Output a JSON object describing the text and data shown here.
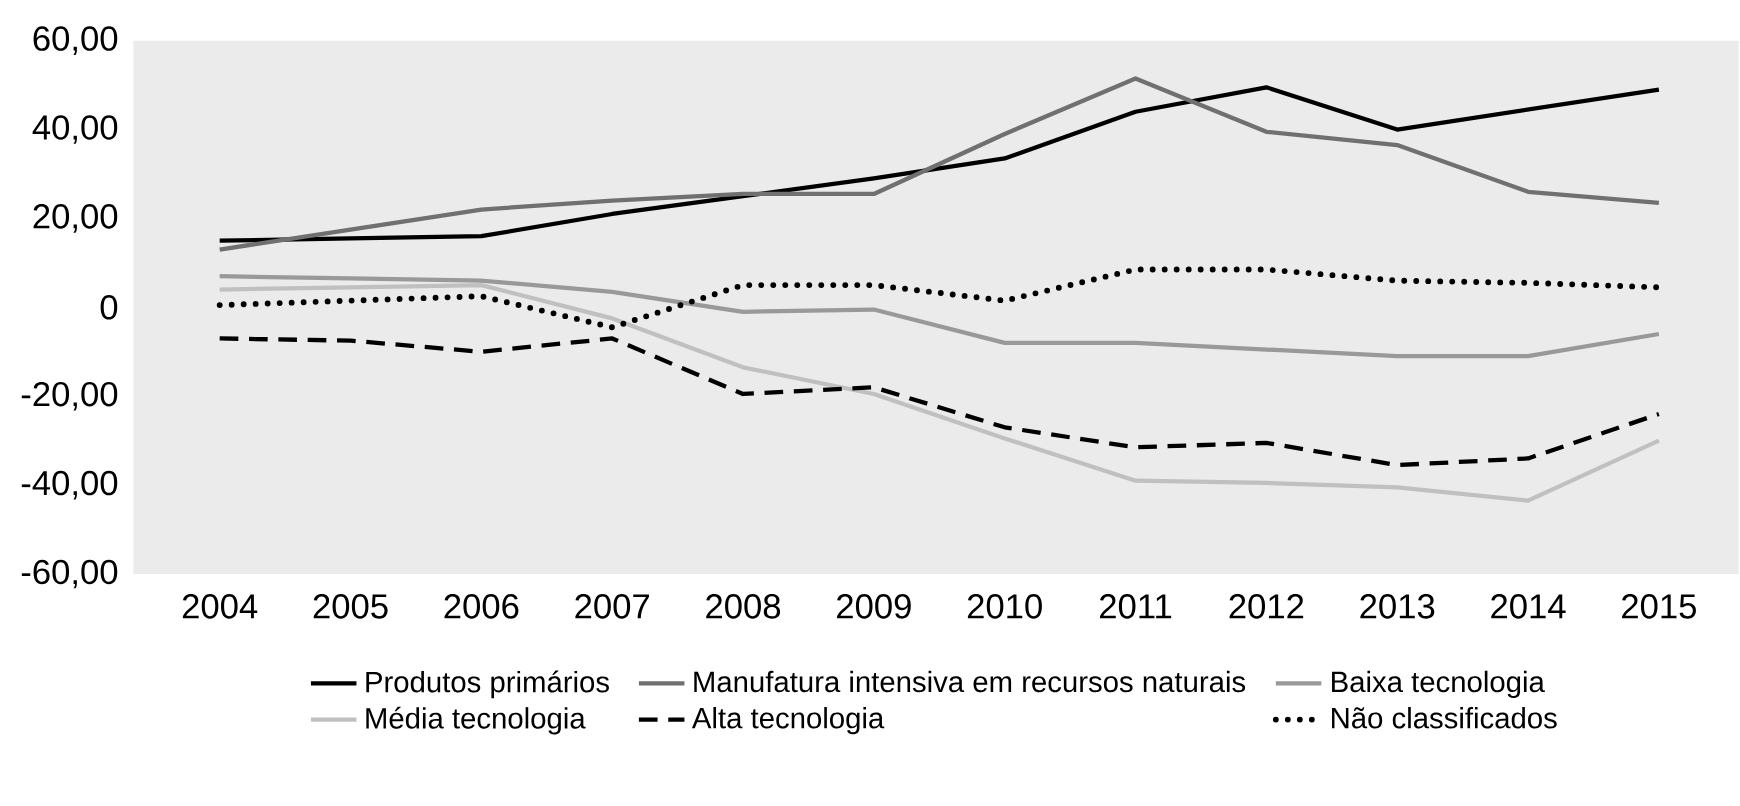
{
  "chart_data": {
    "type": "line",
    "x": [
      2004,
      2005,
      2006,
      2007,
      2008,
      2009,
      2010,
      2011,
      2012,
      2013,
      2014,
      2015
    ],
    "series": [
      {
        "name": "Produtos primários",
        "color": "#000000",
        "line_style": "solid",
        "values": [
          15,
          15.5,
          16,
          21,
          25,
          29,
          33.5,
          44,
          49.5,
          40,
          44.5,
          49
        ]
      },
      {
        "name": "Manufatura intensiva em recursos naturais",
        "color": "#707070",
        "line_style": "solid",
        "values": [
          13,
          17.5,
          22,
          24,
          25.5,
          25.5,
          39,
          51.5,
          39.5,
          36.5,
          26,
          23.5
        ]
      },
      {
        "name": "Baixa tecnologia",
        "color": "#999999",
        "line_style": "solid",
        "values": [
          7,
          6.5,
          6,
          3.5,
          -1,
          -0.5,
          -8,
          -8,
          -9.5,
          -11,
          -11,
          -6
        ]
      },
      {
        "name": "Média tecnologia",
        "color": "#c0c0c0",
        "line_style": "solid",
        "values": [
          4,
          4.5,
          5,
          -2.5,
          -13.5,
          -19.5,
          -29.5,
          -39,
          -39.5,
          -40.5,
          -43.5,
          -30
        ]
      },
      {
        "name": "Alta tecnologia",
        "color": "#000000",
        "line_style": "dashed",
        "values": [
          -7,
          -7.5,
          -10,
          -7,
          -19.5,
          -18,
          -27,
          -31.5,
          -30.5,
          -35.5,
          -34,
          -24
        ]
      },
      {
        "name": "Não classificados",
        "color": "#000000",
        "line_style": "dotted",
        "values": [
          0.5,
          1.5,
          2.5,
          -4.5,
          5,
          5,
          1.5,
          8.5,
          8.5,
          6,
          5.5,
          4.5
        ]
      }
    ],
    "xlim": [
      2003.34,
      2015.61
    ],
    "xticks": [
      2004,
      2005,
      2006,
      2007,
      2008,
      2009,
      2010,
      2011,
      2012,
      2013,
      2014,
      2015
    ],
    "ylim": [
      -60,
      60
    ],
    "yticks": [
      {
        "value": -60,
        "label": "-60,00"
      },
      {
        "value": -40,
        "label": "-40,00"
      },
      {
        "value": -20,
        "label": "-20,00"
      },
      0,
      {
        "value": 20,
        "label": "20,00"
      },
      {
        "value": 40,
        "label": "40,00"
      },
      {
        "value": 60,
        "label": "60,00"
      }
    ],
    "grid": false,
    "legend": "bottom"
  }
}
